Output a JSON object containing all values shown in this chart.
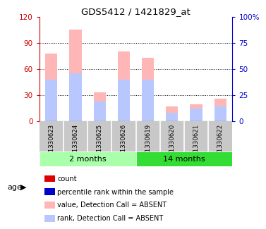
{
  "title": "GDS5412 / 1421829_at",
  "samples": [
    "GSM1330623",
    "GSM1330624",
    "GSM1330625",
    "GSM1330626",
    "GSM1330619",
    "GSM1330620",
    "GSM1330621",
    "GSM1330622"
  ],
  "value_absent": [
    78,
    105,
    33,
    80,
    73,
    17,
    19,
    26
  ],
  "rank_absent": [
    40,
    46,
    19,
    40,
    40,
    8,
    12,
    14
  ],
  "ylim_left": [
    0,
    120
  ],
  "ylim_right": [
    0,
    100
  ],
  "yticks_left": [
    0,
    30,
    60,
    90,
    120
  ],
  "yticks_right": [
    0,
    25,
    50,
    75,
    100
  ],
  "color_value_absent": "#FFB6B6",
  "color_rank_absent": "#B8C8FF",
  "color_count": "#DD0000",
  "color_percentile": "#0000CC",
  "left_tick_color": "#CC0000",
  "right_tick_color": "#0000CC",
  "bar_width": 0.5,
  "bg_color": "#FFFFFF",
  "sample_bg": "#C8C8C8",
  "group1_color": "#AAFFAA",
  "group2_color": "#33DD33",
  "group1_label": "2 months",
  "group2_label": "14 months",
  "legend_items": [
    {
      "color": "#DD0000",
      "label": "count"
    },
    {
      "color": "#0000CC",
      "label": "percentile rank within the sample"
    },
    {
      "color": "#FFB6B6",
      "label": "value, Detection Call = ABSENT"
    },
    {
      "color": "#B8C8FF",
      "label": "rank, Detection Call = ABSENT"
    }
  ]
}
